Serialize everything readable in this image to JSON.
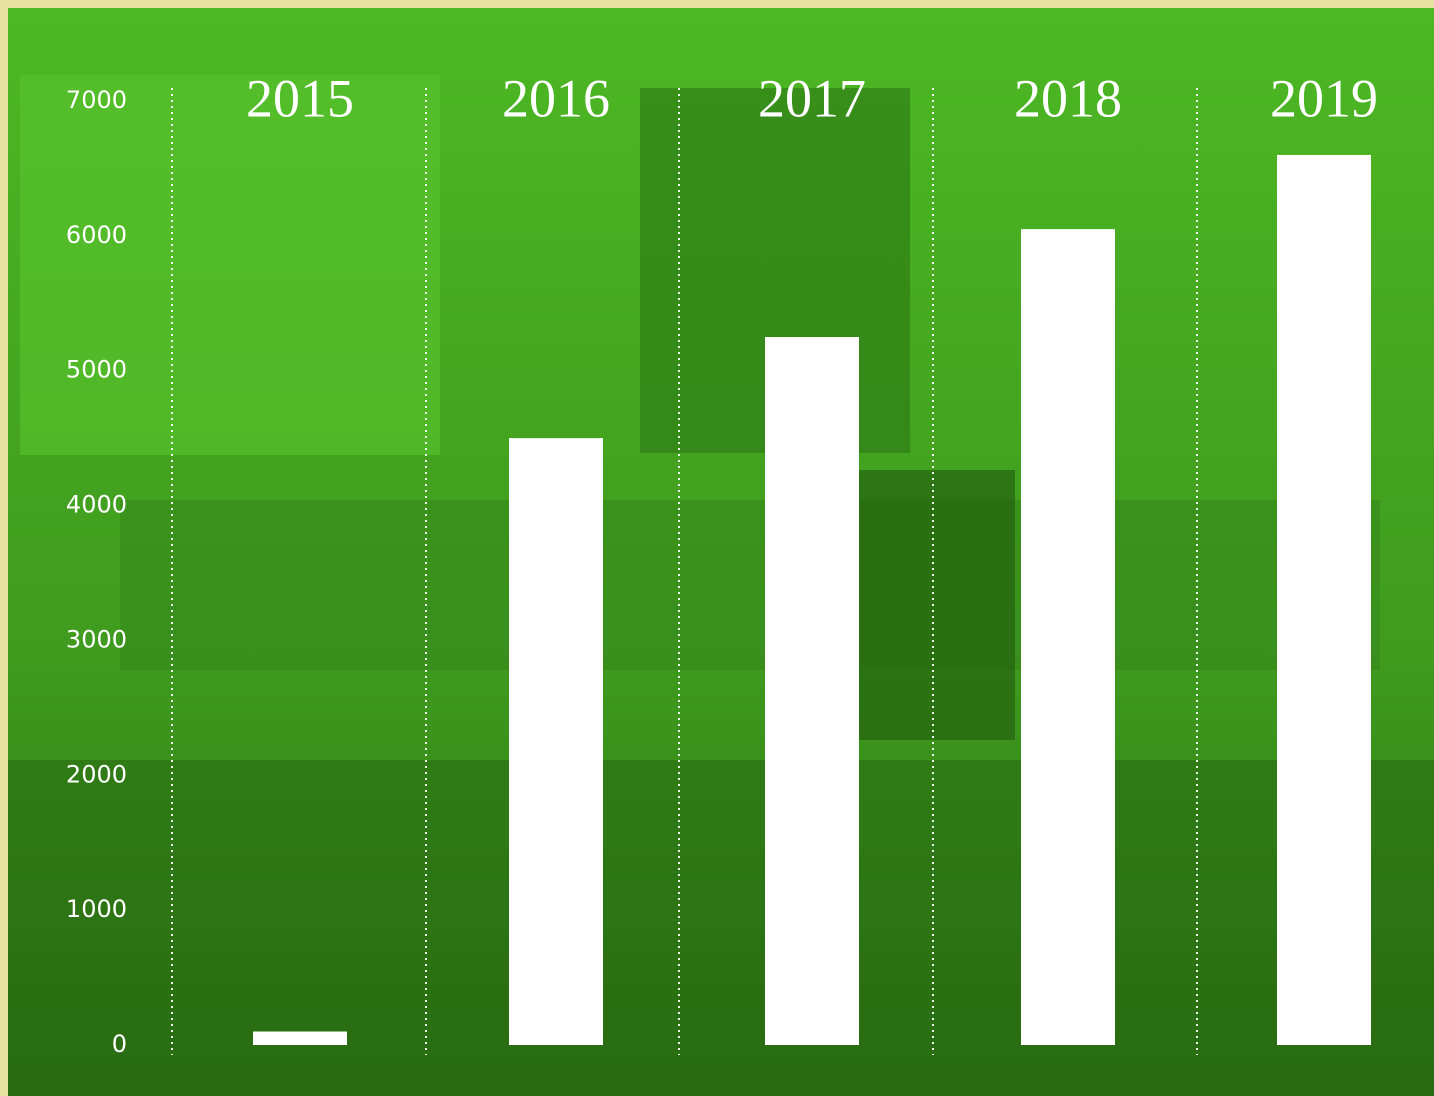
{
  "chart_data": {
    "type": "bar",
    "categories": [
      "2015",
      "2016",
      "2017",
      "2018",
      "2019"
    ],
    "values": [
      100,
      4500,
      5250,
      6050,
      6600
    ],
    "color": "#ffffff",
    "ylim": [
      0,
      7000
    ],
    "yticks": [
      0,
      1000,
      2000,
      3000,
      4000,
      5000,
      6000,
      7000
    ],
    "grid": false
  }
}
